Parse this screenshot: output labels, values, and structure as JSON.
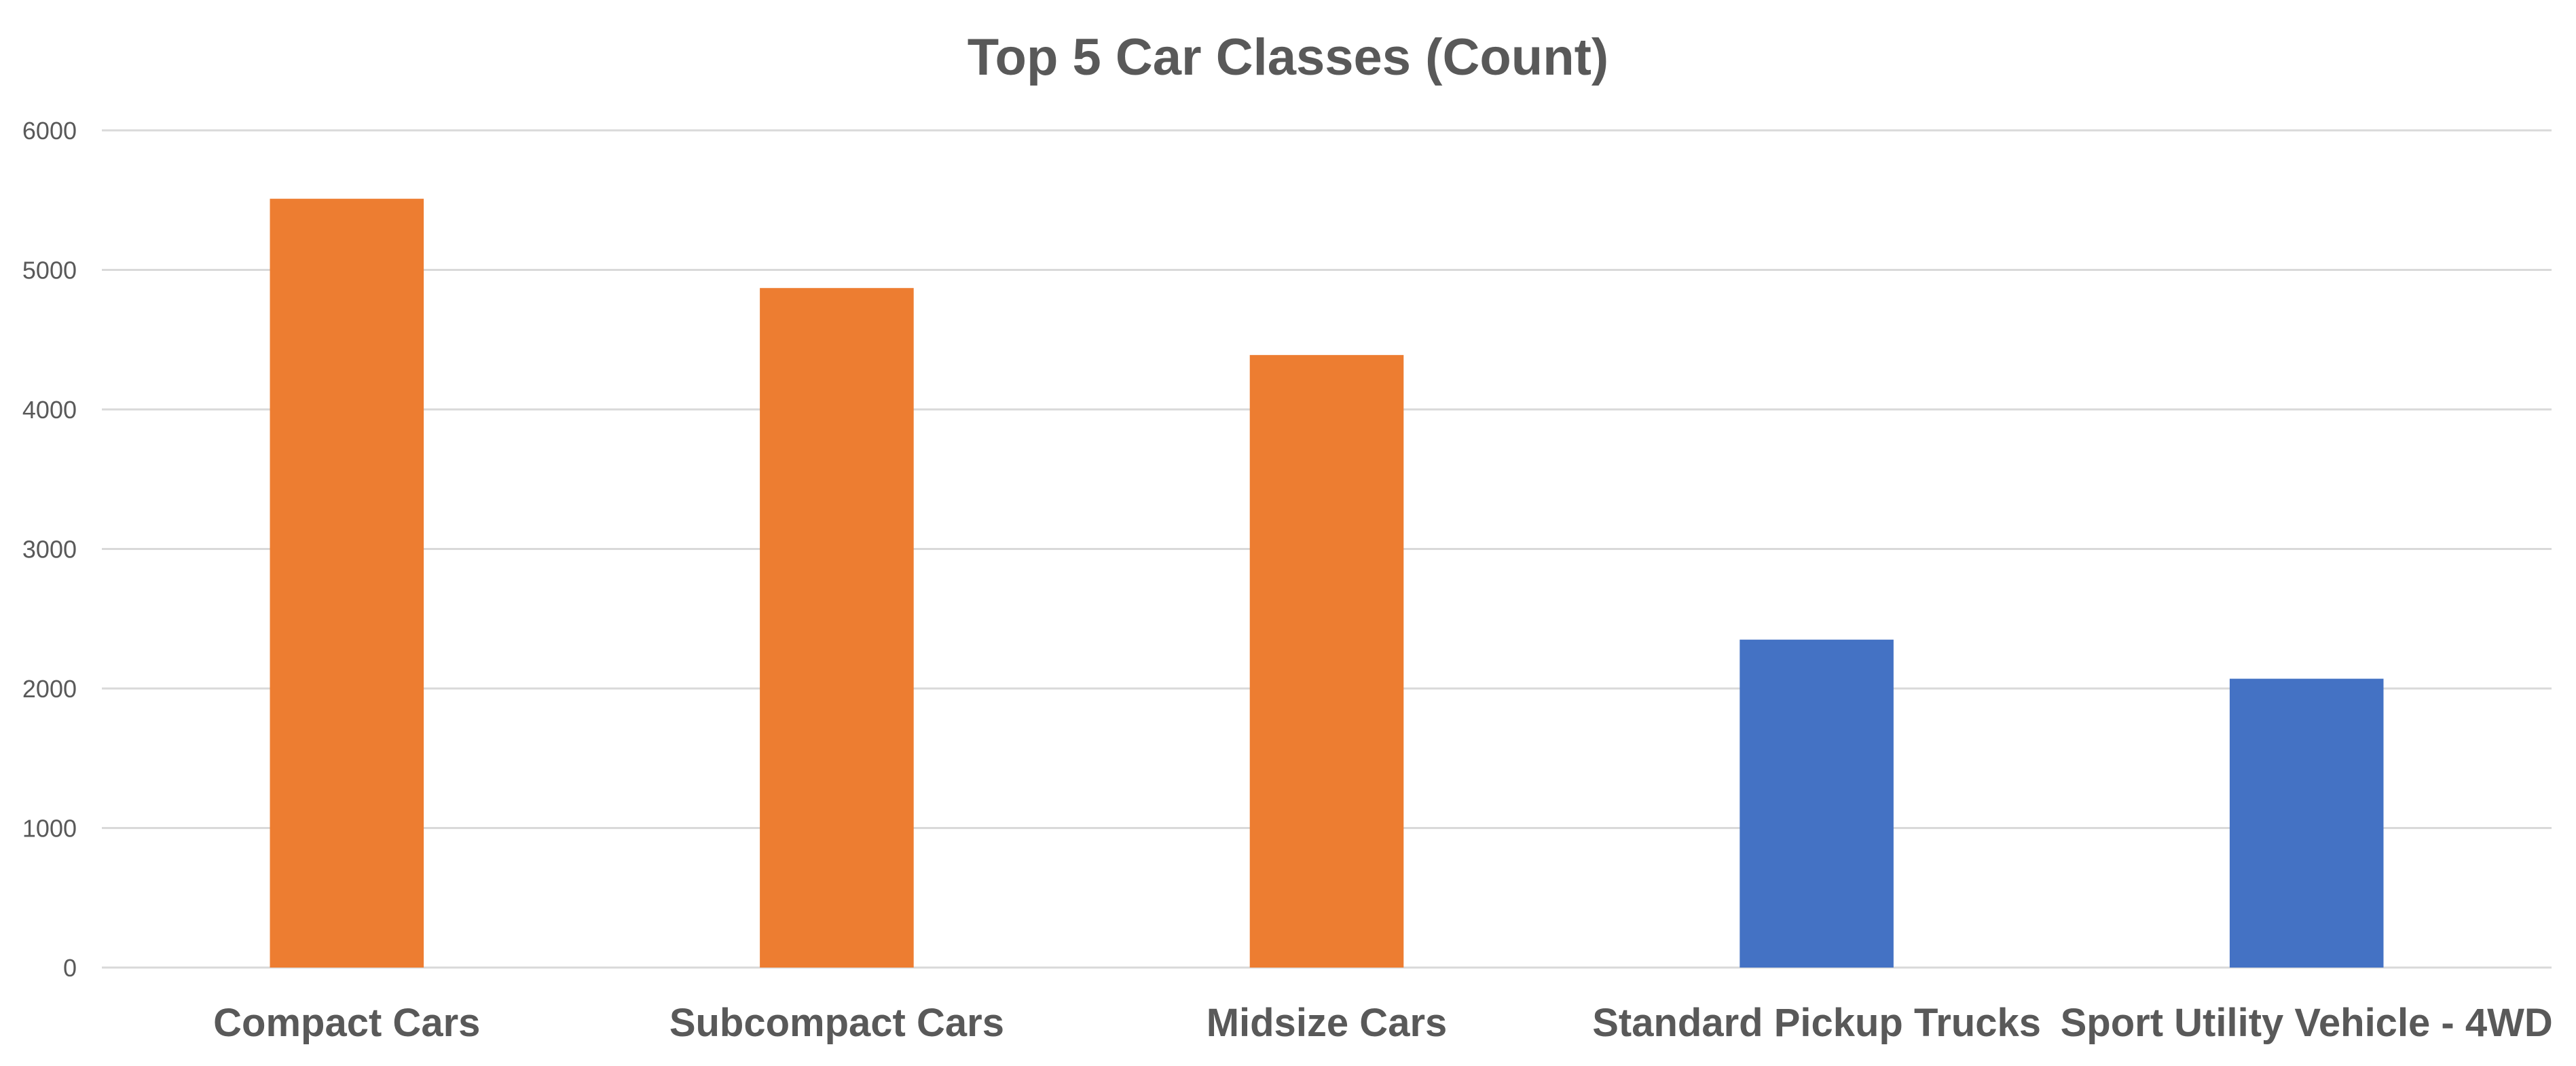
{
  "chart_data": {
    "type": "bar",
    "title": "Top 5 Car Classes (Count)",
    "xlabel": "",
    "ylabel": "",
    "categories": [
      "Compact Cars",
      "Subcompact Cars",
      "Midsize Cars",
      "Standard Pickup Trucks",
      "Sport Utility Vehicle - 4WD"
    ],
    "values": [
      5510,
      4870,
      4390,
      2350,
      2070
    ],
    "bar_colors": [
      "#ED7D31",
      "#ED7D31",
      "#ED7D31",
      "#4472C4",
      "#4472C4"
    ],
    "ylim": [
      0,
      6000
    ],
    "yticks": [
      0,
      1000,
      2000,
      3000,
      4000,
      5000,
      6000
    ],
    "grid": true,
    "legend": "none"
  }
}
